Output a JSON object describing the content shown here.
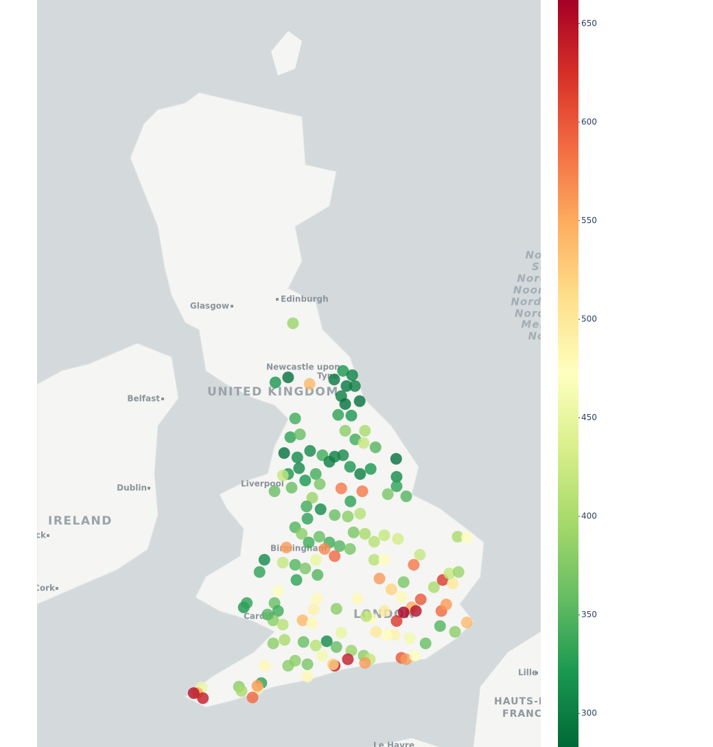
{
  "map": {
    "labels": [
      {
        "text": "Glasgow",
        "style": "city"
      },
      {
        "text": "Edinburgh",
        "style": "city"
      },
      {
        "text": "Newcastle upon",
        "style": "city"
      },
      {
        "text": "Tyne",
        "style": "city"
      },
      {
        "text": "UNITED KINGDOM",
        "style": "country"
      },
      {
        "text": "Belfast",
        "style": "city"
      },
      {
        "text": "Dublin",
        "style": "city"
      },
      {
        "text": "IRELAND",
        "style": "country"
      },
      {
        "text": "Liverpool",
        "style": "city"
      },
      {
        "text": "Birmingham",
        "style": "city"
      },
      {
        "text": "Cardiff",
        "style": "city"
      },
      {
        "text": "LONDON",
        "style": "country"
      },
      {
        "text": "Limerick",
        "style": "city"
      },
      {
        "text": "Cork",
        "style": "city"
      },
      {
        "text": "Lille",
        "style": "city"
      },
      {
        "text": "HAUTS-DE-",
        "style": "region"
      },
      {
        "text": "FRANCE",
        "style": "region"
      },
      {
        "text": "Le Havre",
        "style": "city"
      },
      {
        "text": "North",
        "style": "sea"
      },
      {
        "text": "Sea",
        "style": "sea"
      },
      {
        "text": "Nordsee",
        "style": "sea"
      },
      {
        "text": "Noordzee",
        "style": "sea"
      },
      {
        "text": "Nordsjøen",
        "style": "sea"
      },
      {
        "text": "Nordsjön",
        "style": "sea"
      },
      {
        "text": "Mer du",
        "style": "sea"
      },
      {
        "text": "Nord",
        "style": "sea"
      }
    ]
  },
  "chart_data": {
    "type": "scattermapbox",
    "lon": [
      -2.83,
      -2.94,
      -3.23,
      -2.45,
      -1.69,
      -1.48,
      -1.89,
      -1.61,
      -1.42,
      -1.73,
      -1.64,
      -1.31,
      -1.5,
      -1.8,
      -1.41,
      -2.78,
      -2.89,
      -2.67,
      -1.64,
      -1.19,
      -0.95,
      -1.22,
      -3.03,
      -2.73,
      -2.44,
      -2.16,
      -1.88,
      -1.69,
      -2.0,
      -1.53,
      -1.3,
      -1.06,
      -0.48,
      -0.47,
      -0.47,
      -0.67,
      -0.25,
      -2.94,
      -2.69,
      -3.06,
      -2.55,
      -2.31,
      -2.22,
      -1.73,
      -1.25,
      -1.52,
      -3.25,
      -2.86,
      -2.39,
      -2.52,
      -2.2,
      -2.5,
      -1.88,
      -1.58,
      -1.3,
      -2.78,
      -2.63,
      -2.47,
      -2.23,
      -2.0,
      -1.77,
      -1.53,
      -1.19,
      -1.45,
      -0.98,
      -0.75,
      -0.44,
      -2.98,
      -2.11,
      -1.88,
      -2.31,
      -3.48,
      -3.59,
      -3.06,
      -2.78,
      -2.55,
      -2.27,
      -2.75,
      -0.98,
      -0.75,
      -0.31,
      -0.08,
      0.06,
      0.92,
      1.13,
      -0.86,
      -0.59,
      -0.36,
      -0.13,
      -0.31,
      -0.03,
      -0.47,
      -0.75,
      -1.06,
      -1.36,
      0.08,
      0.55,
      0.66,
      0.38,
      0.58,
      0.81,
      0.73,
      0.94,
      1.13,
      0.86,
      0.52,
      0.19,
      -0.17,
      -0.52,
      -0.7,
      -0.94,
      -1.16,
      -1.73,
      -2.28,
      -1.84,
      -2.36,
      -3.16,
      -3.25,
      -3.17,
      -3.28,
      -3.06,
      -3.95,
      -3.88,
      -3.41,
      -2.61,
      -2.39,
      -3.28,
      -3.02,
      -2.59,
      -2.31,
      -2.06,
      -1.84,
      -1.5,
      -1.22,
      -1.08,
      -1.19,
      -1.58,
      -1.88,
      -1.92,
      -2.16,
      -2.5,
      -2.78,
      -2.5,
      -2.94,
      -3.47,
      -3.55,
      -3.63,
      -3.64,
      -3.75,
      -4.06,
      -4.0,
      -4.91,
      -5.0,
      -5.09,
      -4.88,
      -0.36,
      -0.25,
      -0.05
    ],
    "lat": [
      55.62,
      54.87,
      54.8,
      54.78,
      54.96,
      54.9,
      54.84,
      54.75,
      54.75,
      54.61,
      54.5,
      54.54,
      54.34,
      54.35,
      54.01,
      54.3,
      54.04,
      54.08,
      54.13,
      54.13,
      53.9,
      53.96,
      53.82,
      53.76,
      53.85,
      53.79,
      53.77,
      53.79,
      53.7,
      53.63,
      53.53,
      53.6,
      53.74,
      53.49,
      53.36,
      53.25,
      53.22,
      53.53,
      53.61,
      53.51,
      53.44,
      53.53,
      53.39,
      53.33,
      53.29,
      53.15,
      53.29,
      53.34,
      53.2,
      53.08,
      53.04,
      52.91,
      52.96,
      52.94,
      52.98,
      52.79,
      52.7,
      52.58,
      52.66,
      52.58,
      52.53,
      52.49,
      52.7,
      52.72,
      52.59,
      52.68,
      52.63,
      52.51,
      52.49,
      52.39,
      52.34,
      52.34,
      52.17,
      52.3,
      52.27,
      52.22,
      52.13,
      52.06,
      52.34,
      52.34,
      52.03,
      52.27,
      52.41,
      52.66,
      52.65,
      52.08,
      51.93,
      51.82,
      51.68,
      51.61,
      51.63,
      51.49,
      51.63,
      51.53,
      51.8,
      51.79,
      51.63,
      51.72,
      51.96,
      52.06,
      52.01,
      52.15,
      52.17,
      51.47,
      51.34,
      51.42,
      51.18,
      51.25,
      51.3,
      51.3,
      51.34,
      51.56,
      51.33,
      51.8,
      51.66,
      51.65,
      51.91,
      51.74,
      51.63,
      51.5,
      51.44,
      51.68,
      51.74,
      51.58,
      51.5,
      51.46,
      51.18,
      51.23,
      51.2,
      51.15,
      51.21,
      51.13,
      51.08,
      51.01,
      50.96,
      50.91,
      50.96,
      50.87,
      50.89,
      51.01,
      50.89,
      50.94,
      50.72,
      50.87,
      50.87,
      50.63,
      50.55,
      50.59,
      50.43,
      50.58,
      50.52,
      50.57,
      50.49,
      50.49,
      50.42,
      50.98,
      50.96,
      51.01
    ],
    "values": [
      390,
      290,
      320,
      540,
      320,
      300,
      295,
      295,
      300,
      300,
      290,
      290,
      320,
      330,
      340,
      340,
      330,
      360,
      380,
      400,
      350,
      420,
      290,
      310,
      310,
      340,
      300,
      310,
      300,
      320,
      300,
      320,
      290,
      310,
      330,
      370,
      350,
      320,
      310,
      420,
      320,
      340,
      370,
      580,
      580,
      330,
      360,
      360,
      390,
      340,
      310,
      330,
      360,
      380,
      410,
      350,
      380,
      340,
      360,
      340,
      350,
      370,
      400,
      370,
      410,
      420,
      430,
      560,
      570,
      590,
      450,
      310,
      330,
      420,
      350,
      370,
      350,
      330,
      410,
      470,
      370,
      580,
      420,
      400,
      470,
      560,
      520,
      480,
      550,
      660,
      650,
      620,
      500,
      470,
      480,
      600,
      590,
      560,
      400,
      620,
      500,
      420,
      390,
      540,
      380,
      350,
      360,
      460,
      490,
      470,
      500,
      410,
      450,
      480,
      380,
      490,
      470,
      360,
      340,
      380,
      410,
      320,
      330,
      350,
      540,
      480,
      380,
      400,
      360,
      410,
      310,
      360,
      390,
      380,
      420,
      560,
      640,
      640,
      520,
      460,
      370,
      380,
      480,
      380,
      480,
      330,
      490,
      560,
      590,
      380,
      400,
      450,
      550,
      650,
      640,
      600,
      560,
      470
    ],
    "colorscale": [
      "#006837",
      "#1a9850",
      "#66bd63",
      "#a6d96a",
      "#d9ef8b",
      "#ffffbf",
      "#fee08b",
      "#fdae61",
      "#f46d43",
      "#d73027",
      "#a50026"
    ],
    "clim": [
      283,
      662
    ],
    "colorbar_ticks": [
      300,
      350,
      400,
      450,
      500,
      550,
      600,
      650
    ],
    "opacity": 0.8
  }
}
